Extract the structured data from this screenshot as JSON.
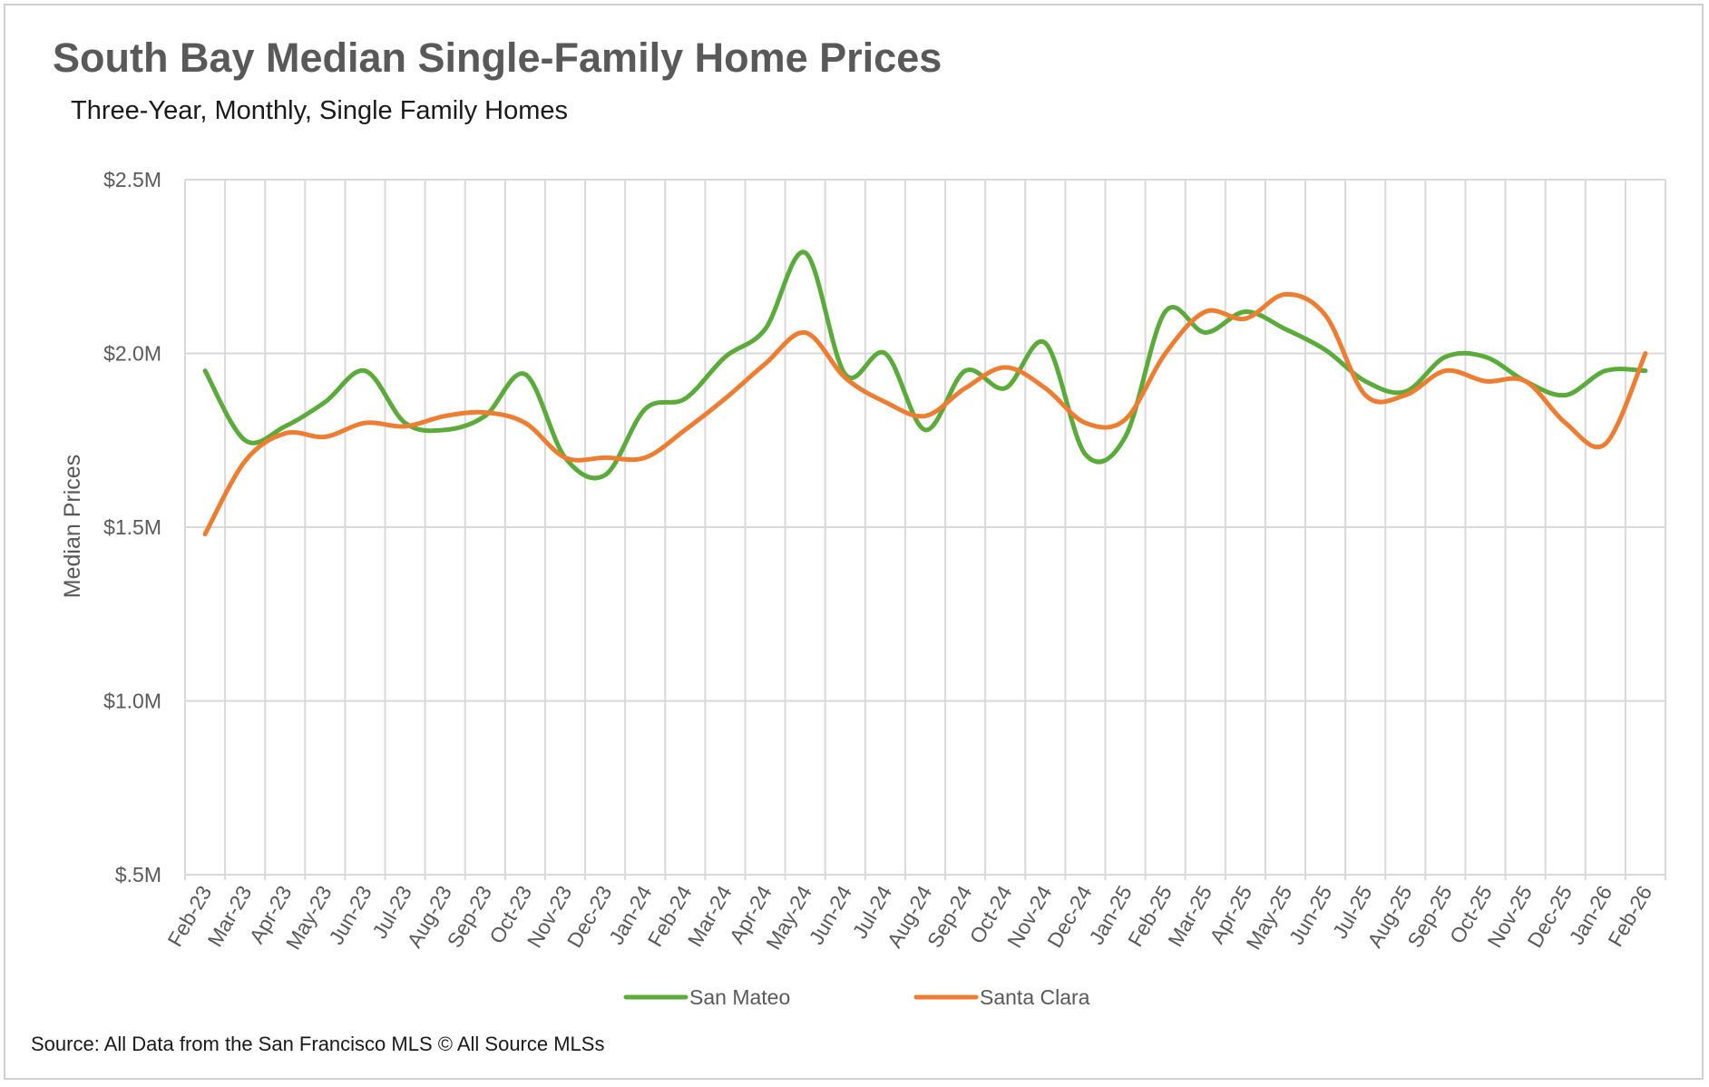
{
  "chart_data": {
    "type": "line",
    "title": "South Bay Median Single-Family Home Prices",
    "subtitle": "Three-Year, Monthly, Single Family Homes",
    "xlabel": "",
    "ylabel": "Median Prices",
    "y_tick_labels": [
      "$.5M",
      "$1.0M",
      "$1.5M",
      "$2.0M",
      "$2.5M"
    ],
    "y_tick_values": [
      0.5,
      1.0,
      1.5,
      2.0,
      2.5
    ],
    "ylim": [
      0.5,
      2.5
    ],
    "y_units": "millions USD",
    "grid": true,
    "legend_position": "bottom",
    "categories": [
      "Feb-23",
      "Mar-23",
      "Apr-23",
      "May-23",
      "Jun-23",
      "Jul-23",
      "Aug-23",
      "Sep-23",
      "Oct-23",
      "Nov-23",
      "Dec-23",
      "Jan-24",
      "Feb-24",
      "Mar-24",
      "Apr-24",
      "May-24",
      "Jun-24",
      "Jul-24",
      "Aug-24",
      "Sep-24",
      "Oct-24",
      "Nov-24",
      "Dec-24",
      "Jan-25",
      "Feb-25",
      "Mar-25",
      "Apr-25",
      "May-25",
      "Jun-25",
      "Jul-25",
      "Aug-25",
      "Sep-25",
      "Oct-25",
      "Nov-25",
      "Dec-25",
      "Jan-26",
      "Feb-26"
    ],
    "series": [
      {
        "name": "San Mateo",
        "color": "#5aab3a",
        "values": [
          1.95,
          1.75,
          1.79,
          1.86,
          1.95,
          1.8,
          1.78,
          1.82,
          1.94,
          1.7,
          1.65,
          1.84,
          1.87,
          1.99,
          2.07,
          2.29,
          1.94,
          2.0,
          1.78,
          1.95,
          1.9,
          2.03,
          1.71,
          1.76,
          2.12,
          2.06,
          2.12,
          2.07,
          2.01,
          1.92,
          1.89,
          1.99,
          1.99,
          1.92,
          1.88,
          1.95,
          1.95
        ]
      },
      {
        "name": "Santa Clara",
        "color": "#ee7d31",
        "values": [
          1.48,
          1.69,
          1.77,
          1.76,
          1.8,
          1.79,
          1.82,
          1.83,
          1.8,
          1.7,
          1.7,
          1.7,
          1.78,
          1.87,
          1.97,
          2.06,
          1.93,
          1.86,
          1.82,
          1.9,
          1.96,
          1.9,
          1.8,
          1.81,
          2.0,
          2.12,
          2.1,
          2.17,
          2.11,
          1.88,
          1.88,
          1.95,
          1.92,
          1.92,
          1.8,
          1.74,
          2.0
        ]
      }
    ]
  },
  "source": "Source: All Data from the San Francisco MLS © All Source MLSs"
}
